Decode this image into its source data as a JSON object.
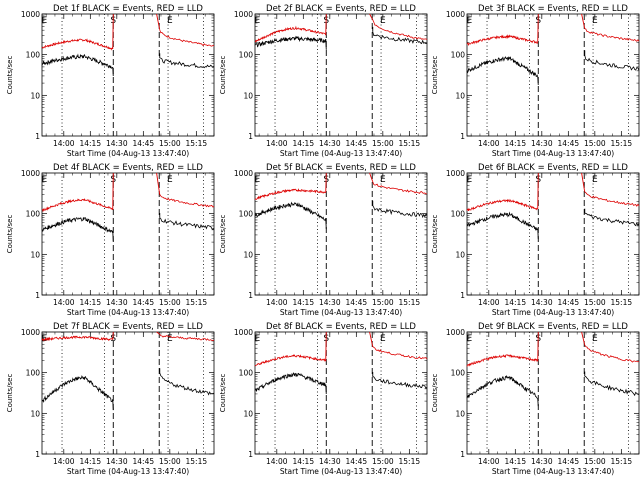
{
  "colors": {
    "events": "#000000",
    "lld": "#dd0000",
    "background": "#ffffff"
  },
  "chart_data": {
    "type": "line",
    "grid": "3x3 panels",
    "log_scale_y": true,
    "ylim": [
      1,
      1000
    ],
    "xlim_hours": [
      "13:47:40",
      "15:25"
    ],
    "ylabel": "Counts/sec",
    "xlabel": "Start Time (04-Aug-13 13:47:40)",
    "yticks": [
      "1",
      "10",
      "100",
      "1000"
    ],
    "xticks": [
      "14:00",
      "14:15",
      "14:30",
      "14:45",
      "15:00",
      "15:15"
    ],
    "time_markers": {
      "dotted": [
        "13:59",
        "14:23",
        "14:59",
        "15:19"
      ],
      "dashed": [
        "14:28",
        "14:54"
      ],
      "labels": [
        "E",
        "S",
        "E"
      ],
      "label_times": [
        "13:49",
        "14:28",
        "15:00"
      ]
    },
    "panels": [
      {
        "title": "Det 1f BLACK = Events, RED = LLD",
        "events": {
          "start": 60,
          "peak": 90,
          "peak_t": "14:12",
          "end_pre": 50,
          "post_start": 80,
          "post_end": 50
        },
        "lld": {
          "start": 150,
          "peak": 230,
          "peak_t": "14:12",
          "end_pre": 140,
          "burst": "saturated",
          "post_start": 400,
          "post_end": 160
        }
      },
      {
        "title": "Det 2f BLACK = Events, RED = LLD",
        "events": {
          "start": 170,
          "peak": 250,
          "peak_t": "14:12",
          "end_pre": 220,
          "post_start": 350,
          "post_end": 200
        },
        "lld": {
          "start": 210,
          "peak": 450,
          "peak_t": "14:12",
          "end_pre": 320,
          "burst": "saturated",
          "post_start": 700,
          "post_end": 230
        }
      },
      {
        "title": "Det 3f BLACK = Events, RED = LLD",
        "events": {
          "start": 40,
          "peak": 80,
          "peak_t": "14:12",
          "end_pre": 30,
          "post_start": 90,
          "post_end": 45
        },
        "lld": {
          "start": 180,
          "peak": 280,
          "peak_t": "14:12",
          "end_pre": 200,
          "burst": "saturated",
          "post_start": 450,
          "post_end": 220
        }
      },
      {
        "title": "Det 4f BLACK = Events, RED = LLD",
        "events": {
          "start": 40,
          "peak": 75,
          "peak_t": "14:12",
          "end_pre": 35,
          "post_start": 80,
          "post_end": 45
        },
        "lld": {
          "start": 120,
          "peak": 220,
          "peak_t": "14:12",
          "end_pre": 130,
          "burst": "saturated",
          "post_start": 300,
          "post_end": 150
        }
      },
      {
        "title": "Det 5f BLACK = Events, RED = LLD",
        "events": {
          "start": 90,
          "peak": 170,
          "peak_t": "14:12",
          "end_pre": 70,
          "post_start": 150,
          "post_end": 90
        },
        "lld": {
          "start": 230,
          "peak": 380,
          "peak_t": "14:12",
          "end_pre": 340,
          "burst": "saturated",
          "post_start": 600,
          "post_end": 320
        }
      },
      {
        "title": "Det 6f BLACK = Events, RED = LLD",
        "events": {
          "start": 50,
          "peak": 95,
          "peak_t": "14:12",
          "end_pre": 40,
          "post_start": 110,
          "post_end": 55
        },
        "lld": {
          "start": 120,
          "peak": 210,
          "peak_t": "14:12",
          "end_pre": 130,
          "burst": "saturated",
          "post_start": 350,
          "post_end": 160
        }
      },
      {
        "title": "Det 7f BLACK = Events, RED = LLD",
        "events": {
          "start": 20,
          "peak": 75,
          "peak_t": "14:12",
          "end_pre": 20,
          "post_start": 90,
          "post_end": 30
        },
        "lld": {
          "start": 650,
          "peak": 750,
          "peak_t": "14:12",
          "end_pre": 650,
          "burst": "saturated",
          "post_start": 850,
          "post_end": 650
        }
      },
      {
        "title": "Det 8f BLACK = Events, RED = LLD",
        "events": {
          "start": 35,
          "peak": 90,
          "peak_t": "14:12",
          "end_pre": 50,
          "post_start": 80,
          "post_end": 45
        },
        "lld": {
          "start": 150,
          "peak": 260,
          "peak_t": "14:12",
          "end_pre": 200,
          "burst": "saturated",
          "post_start": 450,
          "post_end": 220
        }
      },
      {
        "title": "Det 9f BLACK = Events, RED = LLD",
        "events": {
          "start": 25,
          "peak": 75,
          "peak_t": "14:12",
          "end_pre": 25,
          "post_start": 90,
          "post_end": 30
        },
        "lld": {
          "start": 150,
          "peak": 260,
          "peak_t": "14:12",
          "end_pre": 200,
          "burst": "saturated",
          "post_start": 500,
          "post_end": 180
        }
      }
    ]
  }
}
